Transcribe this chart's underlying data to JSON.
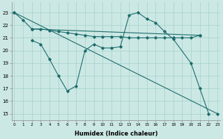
{
  "xlabel": "Humidex (Indice chaleur)",
  "bg_color": "#cce8e4",
  "grid_color": "#aad4ce",
  "line_color": "#1a6b6b",
  "series": [
    {
      "x": [
        0,
        1,
        2,
        21
      ],
      "y": [
        23.0,
        22.4,
        21.7,
        21.2
      ]
    },
    {
      "x": [
        2,
        3,
        4,
        5,
        6,
        7,
        8,
        9,
        10,
        11,
        12,
        13,
        14,
        15,
        16,
        17,
        18,
        19,
        20,
        21
      ],
      "y": [
        21.7,
        21.7,
        21.6,
        21.5,
        21.4,
        21.3,
        21.2,
        21.1,
        21.1,
        21.1,
        21.1,
        21.0,
        21.0,
        21.0,
        21.0,
        21.0,
        21.0,
        21.0,
        21.0,
        21.2
      ]
    },
    {
      "x": [
        2,
        3,
        4,
        5,
        6,
        7,
        8,
        9,
        10,
        11,
        12,
        13,
        14,
        15,
        16,
        17,
        18,
        20,
        21,
        22
      ],
      "y": [
        20.8,
        20.5,
        19.3,
        18.0,
        16.8,
        17.2,
        20.0,
        20.5,
        20.2,
        20.2,
        20.3,
        22.8,
        23.0,
        22.5,
        22.2,
        21.5,
        20.9,
        19.0,
        17.0,
        15.0
      ]
    },
    {
      "x": [
        0,
        23
      ],
      "y": [
        23.0,
        15.0
      ]
    }
  ],
  "ylim": [
    14.5,
    23.8
  ],
  "xlim": [
    -0.3,
    23.3
  ],
  "yticks": [
    15,
    16,
    17,
    18,
    19,
    20,
    21,
    22,
    23
  ],
  "xticks": [
    0,
    1,
    2,
    3,
    4,
    5,
    6,
    7,
    8,
    9,
    10,
    11,
    12,
    13,
    14,
    15,
    16,
    17,
    18,
    19,
    20,
    21,
    22,
    23
  ]
}
